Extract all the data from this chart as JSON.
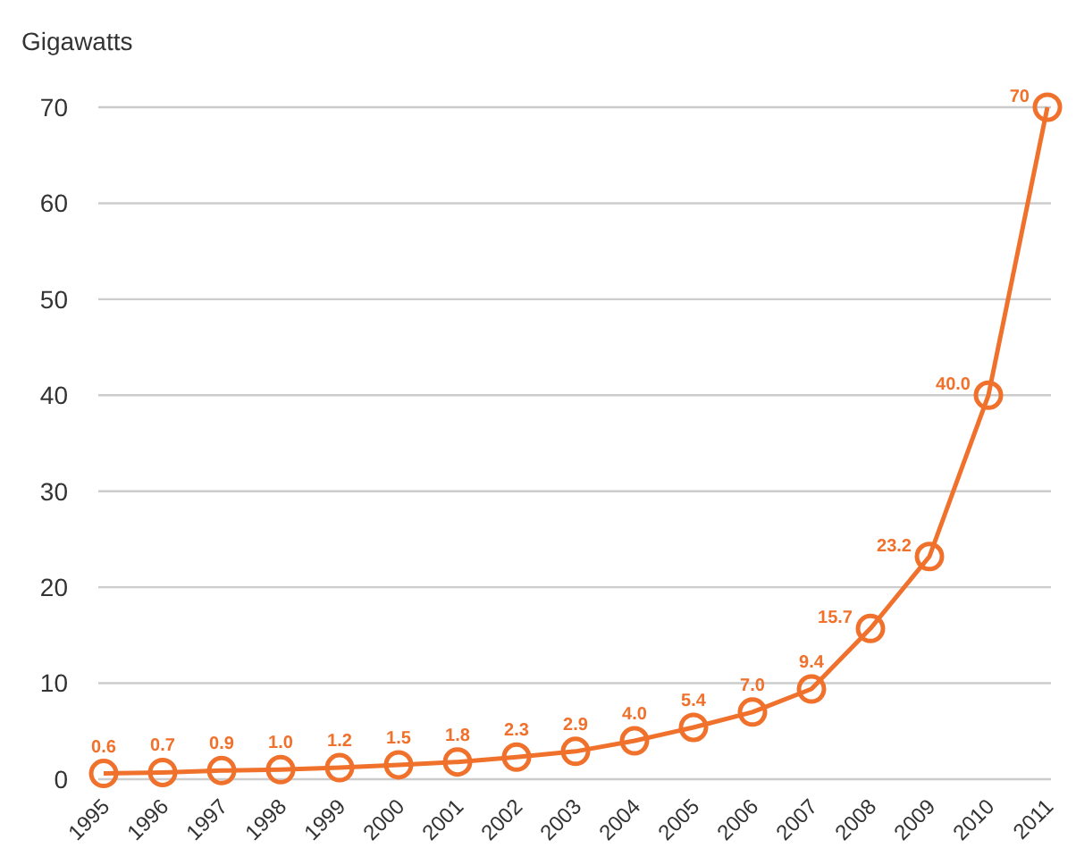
{
  "chart_data": {
    "type": "line",
    "ylabel": "Gigawatts",
    "categories": [
      "1995",
      "1996",
      "1997",
      "1998",
      "1999",
      "2000",
      "2001",
      "2002",
      "2003",
      "2004",
      "2005",
      "2006",
      "2007",
      "2008",
      "2009",
      "2010",
      "2011"
    ],
    "series": [
      {
        "color": "#f0712c",
        "values": [
          0.6,
          0.7,
          0.9,
          1.0,
          1.2,
          1.5,
          1.8,
          2.3,
          2.9,
          4.0,
          5.4,
          7.0,
          9.4,
          15.7,
          23.2,
          40.0,
          70
        ],
        "value_labels": [
          "0.6",
          "0.7",
          "0.9",
          "1.0",
          "1.2",
          "1.5",
          "1.8",
          "2.3",
          "2.9",
          "4.0",
          "5.4",
          "7.0",
          "9.4",
          "15.7",
          "23.2",
          "40.0",
          "70"
        ]
      }
    ],
    "ylim": [
      0,
      70
    ],
    "yticks": [
      0,
      10,
      20,
      30,
      40,
      50,
      60,
      70
    ],
    "grid": "y",
    "marker": "circle",
    "line_style": "solid"
  }
}
